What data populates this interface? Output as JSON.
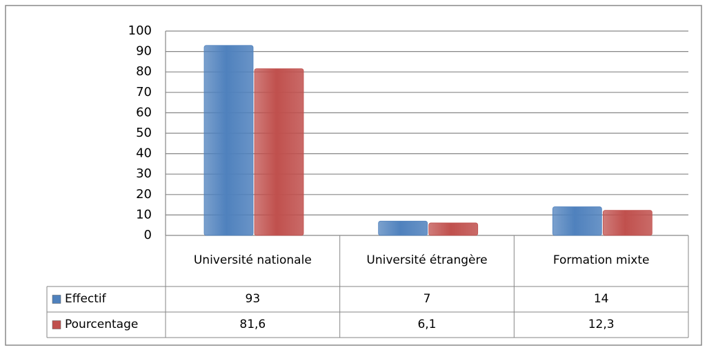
{
  "chart_data": {
    "type": "bar",
    "categories": [
      "Université nationale",
      "Université étrangère",
      "Formation mixte"
    ],
    "series": [
      {
        "name": "Effectif",
        "color": "#4f81bd",
        "values": [
          93,
          7,
          14
        ]
      },
      {
        "name": "Pourcentage",
        "color": "#c0504d",
        "values": [
          81.6,
          6.1,
          12.3
        ],
        "value_labels": [
          "81,6",
          "6,1",
          "12,3"
        ]
      }
    ],
    "ylim": [
      0,
      100
    ],
    "yticks": [
      0,
      10,
      20,
      30,
      40,
      50,
      60,
      70,
      80,
      90,
      100
    ],
    "grid": true
  }
}
